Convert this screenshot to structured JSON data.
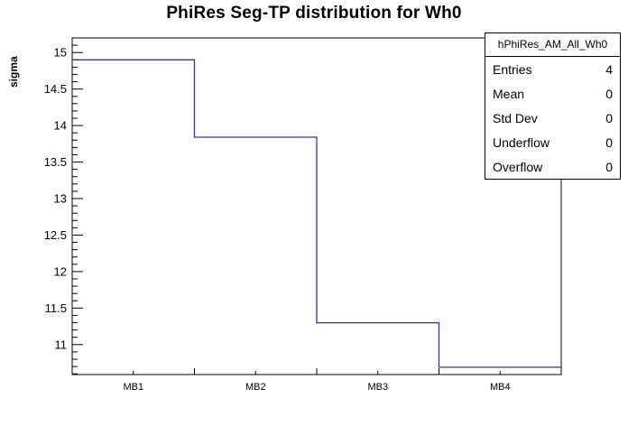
{
  "title": "PhiRes Seg-TP distribution for Wh0",
  "chart_data": {
    "type": "bar",
    "style": "step-histogram",
    "title": "PhiRes Seg-TP distribution for Wh0",
    "categories": [
      "MB1",
      "MB2",
      "MB3",
      "MB4"
    ],
    "values": [
      14.9,
      13.84,
      11.3,
      10.69
    ],
    "xlabel": "",
    "ylabel": "sigma",
    "ylim": [
      10.59,
      15.2
    ],
    "yticks": [
      11,
      11.5,
      12,
      12.5,
      13,
      13.5,
      14,
      14.5,
      15
    ],
    "minor_tick_step": 0.1,
    "grid": false,
    "legend": "none",
    "line_color": "#2e35a0",
    "frame_color": "#000000",
    "background_color": "#ffffff"
  },
  "stats": {
    "title": "hPhiRes_AM_All_Wh0",
    "rows": [
      {
        "label": "Entries",
        "value": "4"
      },
      {
        "label": "Mean",
        "value": "0"
      },
      {
        "label": "Std Dev",
        "value": "0"
      },
      {
        "label": "Underflow",
        "value": "0"
      },
      {
        "label": "Overflow",
        "value": "0"
      }
    ]
  }
}
